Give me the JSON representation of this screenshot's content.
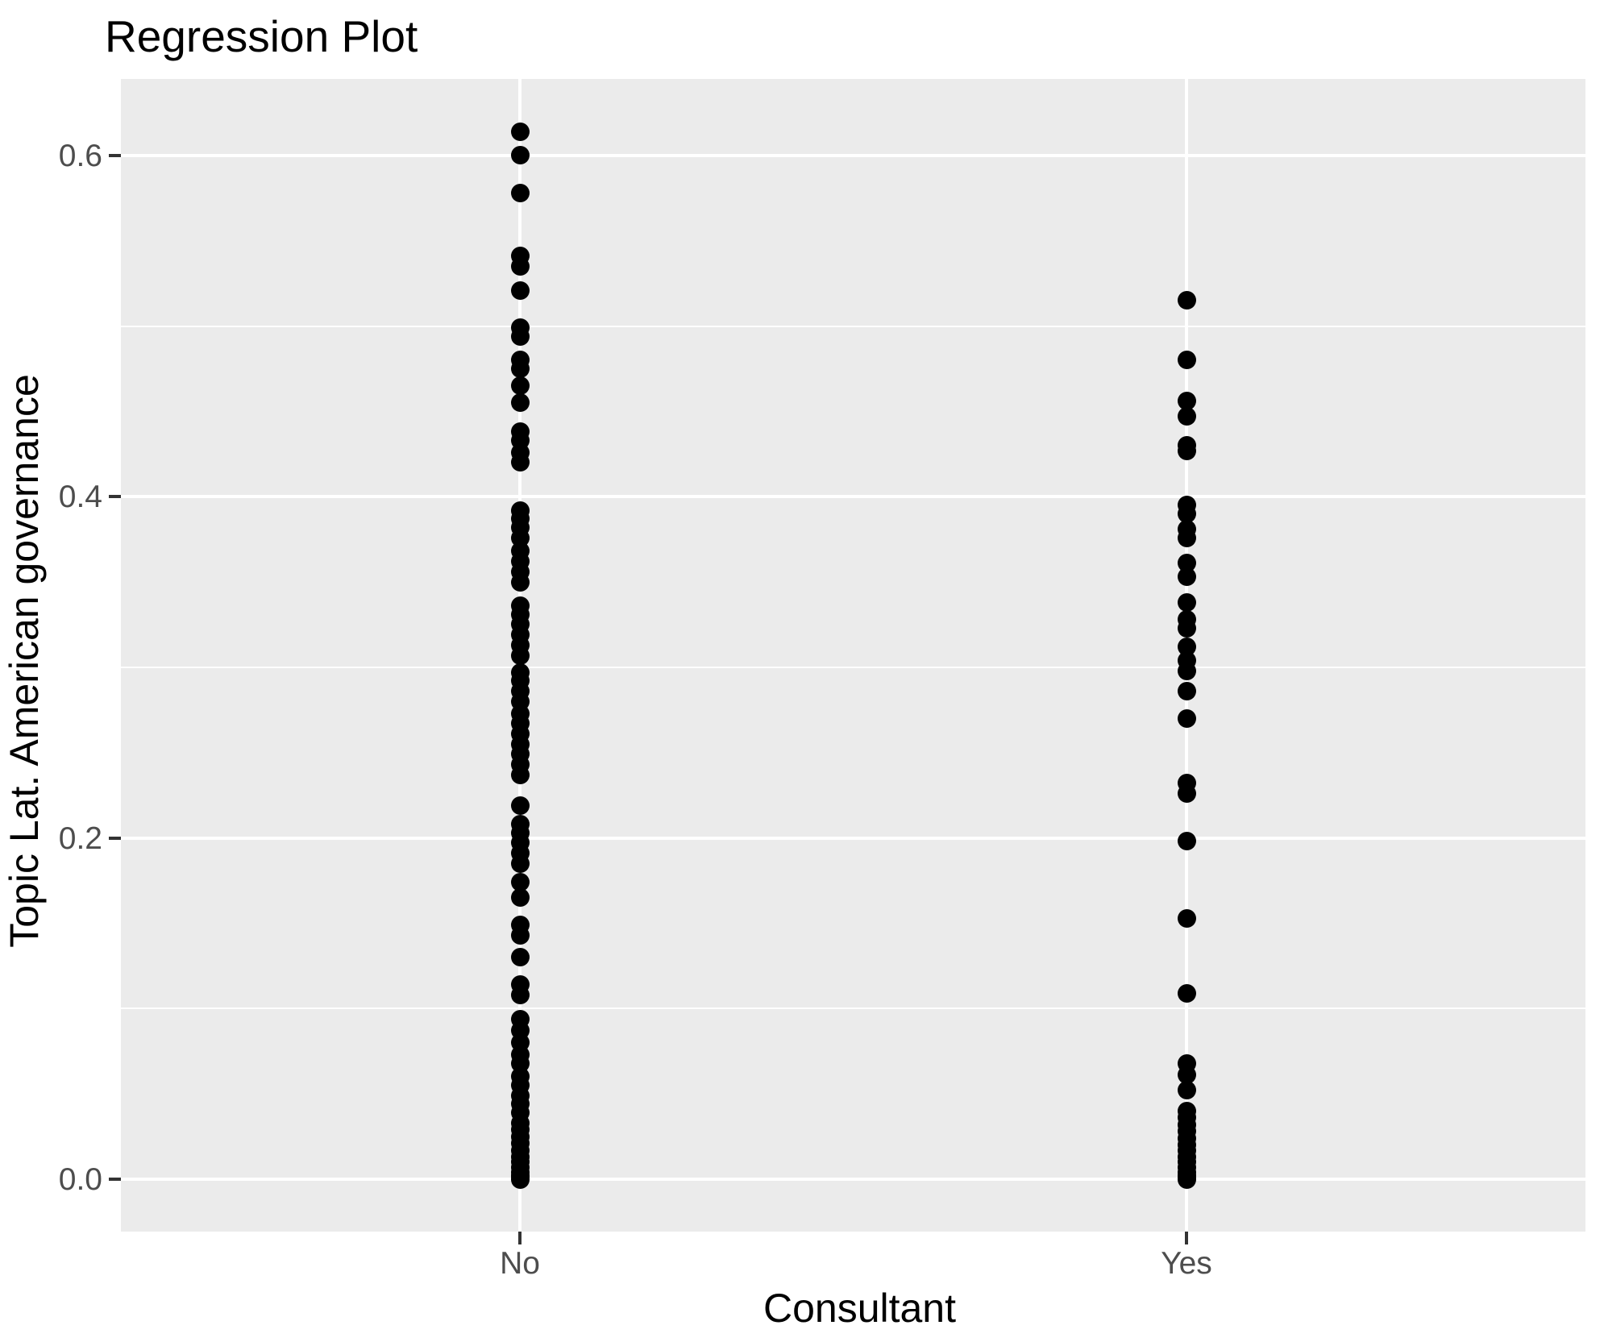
{
  "title": "Regression Plot",
  "chart_data": {
    "type": "scatter",
    "title": "Regression Plot",
    "xlabel": "Consultant",
    "ylabel": "Topic Lat. American governance",
    "categories": [
      "No",
      "Yes"
    ],
    "ylim": [
      -0.031,
      0.645
    ],
    "y_major_ticks": [
      {
        "value": 0.0,
        "label": "0.0"
      },
      {
        "value": 0.2,
        "label": "0.2"
      },
      {
        "value": 0.4,
        "label": "0.4"
      },
      {
        "value": 0.6,
        "label": "0.6"
      }
    ],
    "y_minor_ticks": [
      0.1,
      0.3,
      0.5
    ],
    "grid": "major+minor",
    "legend_position": "none",
    "point_color": "#000000",
    "series": [
      {
        "name": "No",
        "values": [
          0.614,
          0.6,
          0.578,
          0.541,
          0.535,
          0.521,
          0.499,
          0.494,
          0.48,
          0.475,
          0.465,
          0.455,
          0.438,
          0.433,
          0.426,
          0.42,
          0.392,
          0.387,
          0.382,
          0.376,
          0.368,
          0.362,
          0.356,
          0.35,
          0.336,
          0.331,
          0.325,
          0.319,
          0.313,
          0.307,
          0.297,
          0.292,
          0.286,
          0.28,
          0.273,
          0.267,
          0.261,
          0.255,
          0.249,
          0.243,
          0.237,
          0.219,
          0.208,
          0.203,
          0.197,
          0.191,
          0.185,
          0.174,
          0.165,
          0.149,
          0.143,
          0.13,
          0.114,
          0.108,
          0.094,
          0.087,
          0.08,
          0.073,
          0.068,
          0.06,
          0.055,
          0.049,
          0.044,
          0.039,
          0.033,
          0.029,
          0.025,
          0.021,
          0.017,
          0.013,
          0.01,
          0.007,
          0.004,
          0.002,
          0.001,
          0.0
        ]
      },
      {
        "name": "Yes",
        "values": [
          0.515,
          0.48,
          0.456,
          0.447,
          0.43,
          0.427,
          0.395,
          0.39,
          0.381,
          0.376,
          0.361,
          0.353,
          0.338,
          0.328,
          0.323,
          0.312,
          0.304,
          0.298,
          0.286,
          0.27,
          0.232,
          0.226,
          0.198,
          0.153,
          0.109,
          0.068,
          0.061,
          0.052,
          0.04,
          0.036,
          0.032,
          0.028,
          0.024,
          0.02,
          0.017,
          0.013,
          0.01,
          0.007,
          0.004,
          0.002,
          0.001,
          0.0
        ]
      }
    ]
  },
  "style": {
    "panel_bg": "#EBEBEB",
    "gridline": "#FFFFFF",
    "tick_label_color": "#4D4D4D",
    "tick_mark_color": "#333333",
    "title_color": "#000000",
    "point_color": "#000000"
  }
}
